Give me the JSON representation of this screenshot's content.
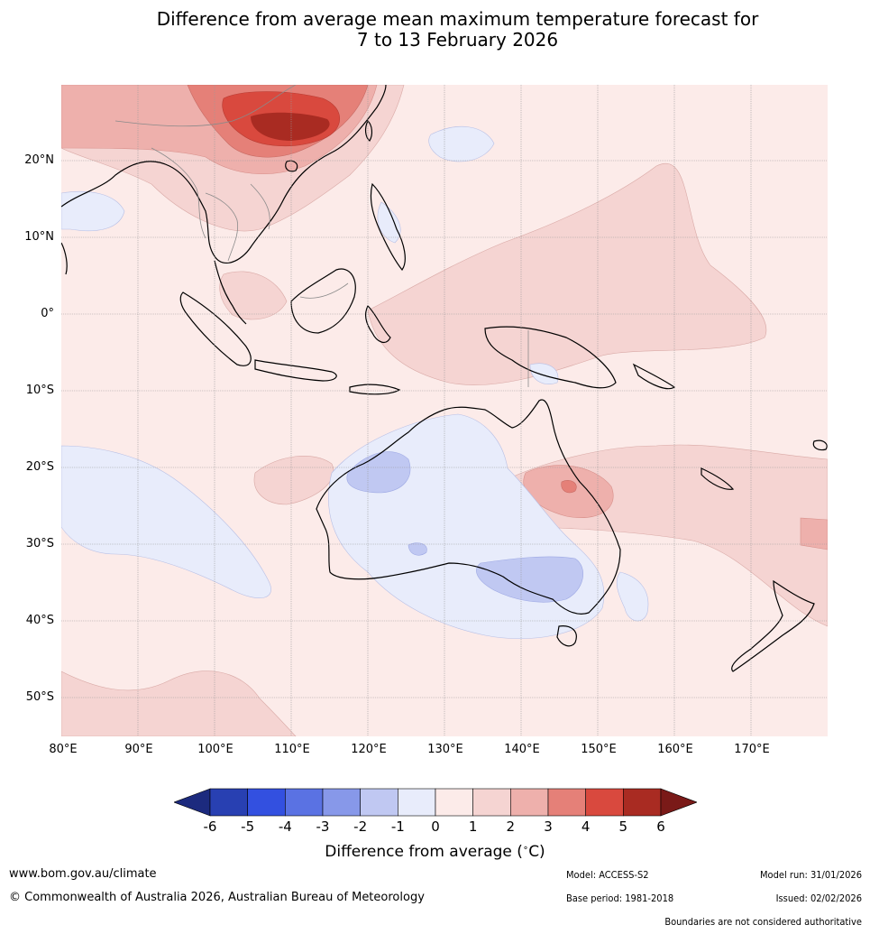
{
  "title": {
    "line1": "Difference from average mean maximum temperature forecast for",
    "line2": "7 to 13 February 2026"
  },
  "map": {
    "latitude_labels": [
      "20°N",
      "10°N",
      "0°",
      "10°S",
      "20°S",
      "30°S",
      "40°S",
      "50°S"
    ],
    "longitude_labels": [
      "80°E",
      "90°E",
      "100°E",
      "110°E",
      "120°E",
      "130°E",
      "140°E",
      "150°E",
      "160°E",
      "170°E"
    ],
    "colors": {
      "anom_n1_0": "#e8ecfb",
      "anom_n2_n1": "#c0c8f2",
      "anom_0_1": "#fcebe9",
      "anom_1_2": "#f5d4d2",
      "anom_2_3": "#eeb0ac",
      "anom_3_4": "#e58078",
      "anom_4_5": "#d9493e",
      "anom_5_6": "#a92b22",
      "coast": "#000000",
      "border": "#8a8a8a",
      "grid": "#9a9a9a"
    }
  },
  "colorbar": {
    "ticks": [
      "-6",
      "-5",
      "-4",
      "-3",
      "-2",
      "-1",
      "0",
      "1",
      "2",
      "3",
      "4",
      "5",
      "6"
    ],
    "colors": [
      "#1c2a7e",
      "#2840b2",
      "#3350e0",
      "#5a72e3",
      "#8798e9",
      "#c0c8f2",
      "#e8ecfb",
      "#fcebe9",
      "#f5d4d2",
      "#eeb0ac",
      "#e58078",
      "#d9493e",
      "#a92b22",
      "#7a1a18"
    ],
    "label": "Difference from average (",
    "label_unit": "C)",
    "degree": "∘"
  },
  "footer": {
    "url": "www.bom.gov.au/climate",
    "copyright": "© Commonwealth of Australia 2026, Australian Bureau of Meteorology",
    "model": "Model: ACCESS-S2",
    "base_period": "Base period: 1981-2018",
    "model_run": "Model run: 31/01/2026",
    "issued": "Issued: 02/02/2026",
    "disclaimer": "Boundaries are not considered authoritative"
  }
}
